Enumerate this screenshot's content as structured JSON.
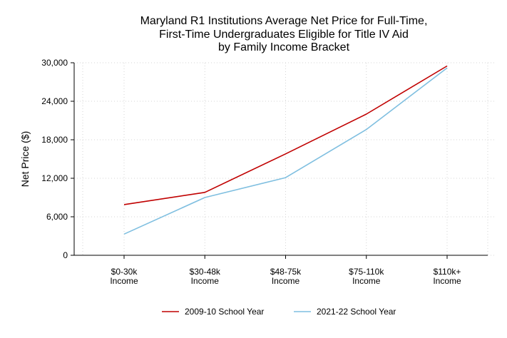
{
  "chart_data": {
    "type": "line",
    "title_lines": [
      "Maryland R1 Institutions Average Net Price for Full-Time,",
      "First-Time Undergraduates Eligible for Title IV Aid",
      "by Family Income Bracket"
    ],
    "xlabel": "",
    "ylabel": "Net Price ($)",
    "categories": [
      [
        "$0-30k",
        "Income"
      ],
      [
        "$30-48k",
        "Income"
      ],
      [
        "$48-75k",
        "Income"
      ],
      [
        "$75-110k",
        "Income"
      ],
      [
        "$110k+",
        "Income"
      ]
    ],
    "y_ticks": [
      0,
      6000,
      12000,
      18000,
      24000,
      30000
    ],
    "y_tick_labels": [
      "0",
      "6,000",
      "12,000",
      "18,000",
      "24,000",
      "30,000"
    ],
    "ylim": [
      0,
      30000
    ],
    "grid": true,
    "legend_position": "bottom",
    "series": [
      {
        "name": "2009-10 School Year",
        "color": "#c00000",
        "values": [
          7900,
          9800,
          15800,
          22000,
          29500
        ]
      },
      {
        "name": "2021-22 School Year",
        "color": "#7fbfe0",
        "values": [
          3300,
          9000,
          12100,
          19600,
          29200
        ]
      }
    ]
  }
}
